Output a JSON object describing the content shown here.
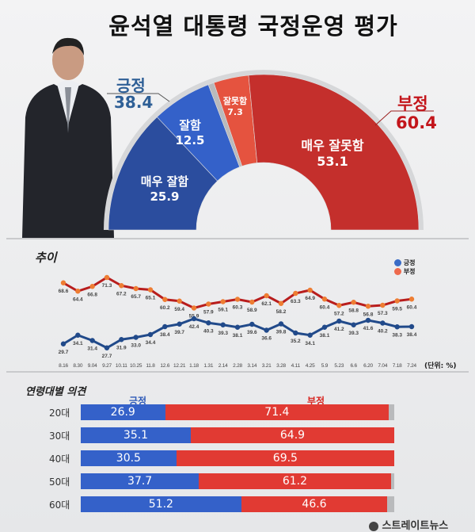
{
  "title": "윤석열 대통령 국정운영 평가",
  "colors": {
    "very_good": "#2b4d9e",
    "good": "#3461c9",
    "bad": "#e5533f",
    "very_bad": "#c42f2c",
    "na": "#b9babc",
    "pos_line": "#214a8a",
    "neg_line": "#b81d1d",
    "neg_marker": "#ee7d33"
  },
  "donut": {
    "positive": {
      "label": "긍정",
      "value": "38.4"
    },
    "negative": {
      "label": "부정",
      "value": "60.4"
    },
    "segments": [
      {
        "label": "매우 잘함",
        "value": 25.9
      },
      {
        "label": "잘함",
        "value": 12.5
      },
      {
        "label": "잘못함",
        "value": 7.3
      },
      {
        "label": "매우 잘못함",
        "value": 53.1
      }
    ]
  },
  "trend": {
    "section_label": "추이",
    "unit": "(단위: %)",
    "legend": [
      "긍정",
      "부정"
    ]
  },
  "chart_data": {
    "type": "line",
    "x": [
      "8.16",
      "8.30",
      "9.04",
      "9.27",
      "10.11",
      "10.25",
      "11.8",
      "12.6",
      "12.21",
      "1.18",
      "1.31",
      "2.14",
      "2.28",
      "3.14",
      "3.21",
      "3.28",
      "4.11",
      "4.25",
      "5.9",
      "5.23",
      "6.6",
      "6.20",
      "7.04",
      "7.18",
      "7.24"
    ],
    "series": [
      {
        "name": "긍정",
        "values": [
          29.7,
          34.1,
          31.4,
          27.7,
          31.9,
          33.0,
          34.4,
          38.4,
          39.7,
          42.4,
          40.3,
          39.3,
          38.1,
          39.6,
          36.6,
          39.8,
          35.2,
          34.1,
          38.1,
          41.2,
          39.3,
          41.6,
          40.2,
          38.3,
          38.4
        ]
      },
      {
        "name": "부정",
        "values": [
          68.6,
          64.4,
          66.8,
          71.3,
          67.2,
          65.7,
          65.1,
          60.2,
          59.4,
          55.9,
          57.9,
          59.1,
          60.3,
          58.9,
          62.1,
          58.2,
          63.3,
          64.9,
          60.4,
          57.2,
          58.8,
          56.8,
          57.3,
          59.5,
          60.4
        ]
      }
    ],
    "legend_position": "top-right",
    "grid": false
  },
  "age": {
    "section_label": "연령대별 의견",
    "pos_header": "긍정",
    "neg_header": "부정",
    "rows": [
      {
        "age": "20대",
        "pos": 26.9,
        "neg": 71.4,
        "pos_label": "26.9",
        "neg_label": "71.4"
      },
      {
        "age": "30대",
        "pos": 35.1,
        "neg": 64.9,
        "pos_label": "35.1",
        "neg_label": "64.9"
      },
      {
        "age": "40대",
        "pos": 30.5,
        "neg": 69.5,
        "pos_label": "30.5",
        "neg_label": "69.5"
      },
      {
        "age": "50대",
        "pos": 37.7,
        "neg": 61.2,
        "pos_label": "37.7",
        "neg_label": "61.2"
      },
      {
        "age": "60대",
        "pos": 51.2,
        "neg": 46.6,
        "pos_label": "51.2",
        "neg_label": "46.6"
      }
    ]
  },
  "logo": "스트레이트뉴스"
}
